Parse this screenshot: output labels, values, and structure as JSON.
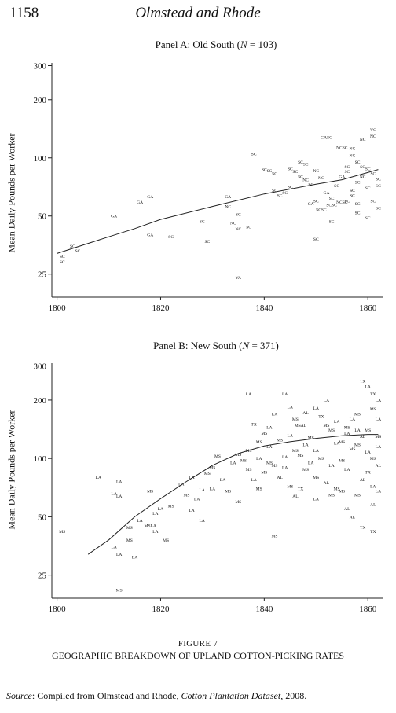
{
  "header": {
    "page_number": "1158",
    "running_head": "Olmstead and Rhode"
  },
  "figure": {
    "label": "Figure 7",
    "caption": "GEOGRAPHIC BREAKDOWN OF UPLAND COTTON-PICKING RATES",
    "source_lead": "Source",
    "source_prefix": ": Compiled from Olmstead and Rhode, ",
    "source_title": "Cotton Plantation Dataset",
    "source_suffix": ", 2008."
  },
  "chart_data": [
    {
      "type": "scatter",
      "title_prefix": "Panel A: Old South (",
      "title_n": "N",
      "title_suffix": " = 103)",
      "ylabel": "Mean Daily Pounds per Worker",
      "xlabel": "",
      "xlim": [
        1799,
        1863
      ],
      "ylim": [
        19,
        310
      ],
      "y_scale": "log",
      "x_ticks": [
        1800,
        1820,
        1840,
        1860
      ],
      "y_ticks": [
        25,
        50,
        100,
        200,
        300
      ],
      "grid": false,
      "legend": "none",
      "points": [
        {
          "x": 1801,
          "y": 31,
          "l": "SC"
        },
        {
          "x": 1803,
          "y": 35,
          "l": "SC"
        },
        {
          "x": 1804,
          "y": 33,
          "l": "SC"
        },
        {
          "x": 1801,
          "y": 29,
          "l": "SC"
        },
        {
          "x": 1811,
          "y": 50,
          "l": "GA"
        },
        {
          "x": 1818,
          "y": 63,
          "l": "GA"
        },
        {
          "x": 1816,
          "y": 59,
          "l": "GA"
        },
        {
          "x": 1818,
          "y": 40,
          "l": "GA"
        },
        {
          "x": 1822,
          "y": 39,
          "l": "SC"
        },
        {
          "x": 1828,
          "y": 47,
          "l": "SC"
        },
        {
          "x": 1829,
          "y": 37,
          "l": "SC"
        },
        {
          "x": 1833,
          "y": 63,
          "l": "GA"
        },
        {
          "x": 1833,
          "y": 56,
          "l": "NC"
        },
        {
          "x": 1834,
          "y": 46,
          "l": "NC"
        },
        {
          "x": 1835,
          "y": 51,
          "l": "SC"
        },
        {
          "x": 1835,
          "y": 43,
          "l": "NC"
        },
        {
          "x": 1835,
          "y": 24,
          "l": "VA"
        },
        {
          "x": 1837,
          "y": 44,
          "l": "SC"
        },
        {
          "x": 1838,
          "y": 105,
          "l": "SC"
        },
        {
          "x": 1840,
          "y": 87,
          "l": "SC"
        },
        {
          "x": 1841,
          "y": 86,
          "l": "SC"
        },
        {
          "x": 1842,
          "y": 83,
          "l": "SC"
        },
        {
          "x": 1842,
          "y": 68,
          "l": "SC"
        },
        {
          "x": 1843,
          "y": 64,
          "l": "SC"
        },
        {
          "x": 1845,
          "y": 88,
          "l": "SC"
        },
        {
          "x": 1846,
          "y": 85,
          "l": "SC"
        },
        {
          "x": 1847,
          "y": 80,
          "l": "SC"
        },
        {
          "x": 1848,
          "y": 77,
          "l": "NC"
        },
        {
          "x": 1849,
          "y": 73,
          "l": "SC"
        },
        {
          "x": 1850,
          "y": 86,
          "l": "NC"
        },
        {
          "x": 1851,
          "y": 79,
          "l": "NC"
        },
        {
          "x": 1852,
          "y": 66,
          "l": "GA"
        },
        {
          "x": 1852,
          "y": 128,
          "l": "GASC"
        },
        {
          "x": 1855,
          "y": 113,
          "l": "NCSC"
        },
        {
          "x": 1857,
          "y": 112,
          "l": "NC"
        },
        {
          "x": 1859,
          "y": 125,
          "l": "NC"
        },
        {
          "x": 1861,
          "y": 130,
          "l": "NC"
        },
        {
          "x": 1861,
          "y": 140,
          "l": "VC"
        },
        {
          "x": 1857,
          "y": 103,
          "l": "NC"
        },
        {
          "x": 1856,
          "y": 85,
          "l": "SC"
        },
        {
          "x": 1855,
          "y": 80,
          "l": "GA"
        },
        {
          "x": 1854,
          "y": 72,
          "l": "SC"
        },
        {
          "x": 1850,
          "y": 60,
          "l": "SC"
        },
        {
          "x": 1849,
          "y": 58,
          "l": "GA"
        },
        {
          "x": 1851,
          "y": 54,
          "l": "SCSC"
        },
        {
          "x": 1853,
          "y": 57,
          "l": "SCSC"
        },
        {
          "x": 1855,
          "y": 59,
          "l": "NCSC"
        },
        {
          "x": 1856,
          "y": 60,
          "l": "SC"
        },
        {
          "x": 1857,
          "y": 64,
          "l": "SC"
        },
        {
          "x": 1858,
          "y": 75,
          "l": "SC"
        },
        {
          "x": 1859,
          "y": 80,
          "l": "NC"
        },
        {
          "x": 1860,
          "y": 70,
          "l": "SC"
        },
        {
          "x": 1861,
          "y": 60,
          "l": "SC"
        },
        {
          "x": 1862,
          "y": 72,
          "l": "SC"
        },
        {
          "x": 1862,
          "y": 55,
          "l": "SC"
        },
        {
          "x": 1860,
          "y": 49,
          "l": "SC"
        },
        {
          "x": 1858,
          "y": 58,
          "l": "SC"
        },
        {
          "x": 1853,
          "y": 47,
          "l": "SC"
        },
        {
          "x": 1850,
          "y": 38,
          "l": "SC"
        },
        {
          "x": 1848,
          "y": 93,
          "l": "SC"
        },
        {
          "x": 1847,
          "y": 95,
          "l": "SC"
        },
        {
          "x": 1845,
          "y": 71,
          "l": "SC"
        },
        {
          "x": 1844,
          "y": 66,
          "l": "SC"
        },
        {
          "x": 1858,
          "y": 95,
          "l": "SC"
        },
        {
          "x": 1856,
          "y": 90,
          "l": "SC"
        },
        {
          "x": 1859,
          "y": 90,
          "l": "SC"
        },
        {
          "x": 1860,
          "y": 88,
          "l": "SC"
        },
        {
          "x": 1861,
          "y": 83,
          "l": "SC"
        },
        {
          "x": 1862,
          "y": 78,
          "l": "SC"
        },
        {
          "x": 1858,
          "y": 52,
          "l": "SC"
        },
        {
          "x": 1857,
          "y": 68,
          "l": "SC"
        },
        {
          "x": 1853,
          "y": 62,
          "l": "SC"
        }
      ],
      "fit": [
        [
          1800,
          32
        ],
        [
          1810,
          39
        ],
        [
          1815,
          43
        ],
        [
          1820,
          48
        ],
        [
          1830,
          56
        ],
        [
          1840,
          65
        ],
        [
          1850,
          73
        ],
        [
          1855,
          77
        ],
        [
          1862,
          87
        ]
      ]
    },
    {
      "type": "scatter",
      "title_prefix": "Panel B: New South (",
      "title_n": "N",
      "title_suffix": " = 371)",
      "ylabel": "Mean Daily Pounds per Worker",
      "xlabel": "",
      "xlim": [
        1799,
        1863
      ],
      "ylim": [
        19,
        310
      ],
      "y_scale": "log",
      "x_ticks": [
        1800,
        1820,
        1840,
        1860
      ],
      "y_ticks": [
        25,
        50,
        100,
        200,
        300
      ],
      "grid": false,
      "legend": "none",
      "points": [
        {
          "x": 1801,
          "y": 42,
          "l": "MS"
        },
        {
          "x": 1808,
          "y": 80,
          "l": "LA"
        },
        {
          "x": 1811,
          "y": 66,
          "l": "LA"
        },
        {
          "x": 1812,
          "y": 64,
          "l": "LA"
        },
        {
          "x": 1812,
          "y": 76,
          "l": "LA"
        },
        {
          "x": 1811,
          "y": 35,
          "l": "LA"
        },
        {
          "x": 1812,
          "y": 32,
          "l": "LA"
        },
        {
          "x": 1812,
          "y": 21,
          "l": "MS"
        },
        {
          "x": 1814,
          "y": 44,
          "l": "MS"
        },
        {
          "x": 1814,
          "y": 38,
          "l": "MS"
        },
        {
          "x": 1815,
          "y": 31,
          "l": "LA"
        },
        {
          "x": 1816,
          "y": 48,
          "l": "LA"
        },
        {
          "x": 1818,
          "y": 68,
          "l": "MS"
        },
        {
          "x": 1818,
          "y": 45,
          "l": "MSLA"
        },
        {
          "x": 1819,
          "y": 52,
          "l": "LA"
        },
        {
          "x": 1819,
          "y": 42,
          "l": "LA"
        },
        {
          "x": 1820,
          "y": 55,
          "l": "LA"
        },
        {
          "x": 1821,
          "y": 38,
          "l": "MS"
        },
        {
          "x": 1822,
          "y": 57,
          "l": "MS"
        },
        {
          "x": 1824,
          "y": 74,
          "l": "LA"
        },
        {
          "x": 1826,
          "y": 80,
          "l": "LA"
        },
        {
          "x": 1826,
          "y": 54,
          "l": "LA"
        },
        {
          "x": 1828,
          "y": 48,
          "l": "LA"
        },
        {
          "x": 1828,
          "y": 69,
          "l": "LA"
        },
        {
          "x": 1829,
          "y": 84,
          "l": "MS"
        },
        {
          "x": 1831,
          "y": 103,
          "l": "MS"
        },
        {
          "x": 1830,
          "y": 90,
          "l": "MS"
        },
        {
          "x": 1832,
          "y": 78,
          "l": "LA"
        },
        {
          "x": 1833,
          "y": 68,
          "l": "MS"
        },
        {
          "x": 1834,
          "y": 95,
          "l": "LA"
        },
        {
          "x": 1835,
          "y": 105,
          "l": "MS"
        },
        {
          "x": 1836,
          "y": 98,
          "l": "MS"
        },
        {
          "x": 1837,
          "y": 110,
          "l": "MS"
        },
        {
          "x": 1837,
          "y": 215,
          "l": "LA"
        },
        {
          "x": 1838,
          "y": 150,
          "l": "TX"
        },
        {
          "x": 1839,
          "y": 122,
          "l": "MS"
        },
        {
          "x": 1840,
          "y": 135,
          "l": "MS"
        },
        {
          "x": 1841,
          "y": 145,
          "l": "LA"
        },
        {
          "x": 1842,
          "y": 170,
          "l": "LA"
        },
        {
          "x": 1844,
          "y": 215,
          "l": "LA"
        },
        {
          "x": 1845,
          "y": 185,
          "l": "LA"
        },
        {
          "x": 1846,
          "y": 160,
          "l": "MS"
        },
        {
          "x": 1847,
          "y": 148,
          "l": "MSAL"
        },
        {
          "x": 1848,
          "y": 172,
          "l": "AL"
        },
        {
          "x": 1850,
          "y": 182,
          "l": "LA"
        },
        {
          "x": 1851,
          "y": 165,
          "l": "TX"
        },
        {
          "x": 1852,
          "y": 200,
          "l": "LA"
        },
        {
          "x": 1853,
          "y": 140,
          "l": "MS"
        },
        {
          "x": 1854,
          "y": 120,
          "l": "LA"
        },
        {
          "x": 1855,
          "y": 98,
          "l": "MS"
        },
        {
          "x": 1856,
          "y": 88,
          "l": "LA"
        },
        {
          "x": 1857,
          "y": 160,
          "l": "LA"
        },
        {
          "x": 1858,
          "y": 170,
          "l": "MS"
        },
        {
          "x": 1859,
          "y": 250,
          "l": "TX"
        },
        {
          "x": 1860,
          "y": 235,
          "l": "LA"
        },
        {
          "x": 1861,
          "y": 215,
          "l": "TX"
        },
        {
          "x": 1862,
          "y": 200,
          "l": "LA"
        },
        {
          "x": 1861,
          "y": 180,
          "l": "MS"
        },
        {
          "x": 1862,
          "y": 160,
          "l": "LA"
        },
        {
          "x": 1860,
          "y": 140,
          "l": "MS"
        },
        {
          "x": 1859,
          "y": 130,
          "l": "AL"
        },
        {
          "x": 1858,
          "y": 118,
          "l": "MS"
        },
        {
          "x": 1860,
          "y": 108,
          "l": "LA"
        },
        {
          "x": 1861,
          "y": 100,
          "l": "MS"
        },
        {
          "x": 1862,
          "y": 92,
          "l": "AL"
        },
        {
          "x": 1860,
          "y": 85,
          "l": "TX"
        },
        {
          "x": 1859,
          "y": 78,
          "l": "AL"
        },
        {
          "x": 1861,
          "y": 72,
          "l": "LA"
        },
        {
          "x": 1858,
          "y": 65,
          "l": "MS"
        },
        {
          "x": 1856,
          "y": 55,
          "l": "AL"
        },
        {
          "x": 1857,
          "y": 50,
          "l": "AL"
        },
        {
          "x": 1859,
          "y": 44,
          "l": "TX"
        },
        {
          "x": 1861,
          "y": 58,
          "l": "AL"
        },
        {
          "x": 1861,
          "y": 42,
          "l": "TX"
        },
        {
          "x": 1854,
          "y": 70,
          "l": "MS"
        },
        {
          "x": 1852,
          "y": 75,
          "l": "AL"
        },
        {
          "x": 1850,
          "y": 80,
          "l": "MS"
        },
        {
          "x": 1848,
          "y": 88,
          "l": "MS"
        },
        {
          "x": 1847,
          "y": 70,
          "l": "TX"
        },
        {
          "x": 1846,
          "y": 64,
          "l": "AL"
        },
        {
          "x": 1845,
          "y": 72,
          "l": "MS"
        },
        {
          "x": 1843,
          "y": 80,
          "l": "AL"
        },
        {
          "x": 1842,
          "y": 92,
          "l": "MS"
        },
        {
          "x": 1840,
          "y": 85,
          "l": "MS"
        },
        {
          "x": 1839,
          "y": 70,
          "l": "MS"
        },
        {
          "x": 1838,
          "y": 78,
          "l": "LA"
        },
        {
          "x": 1837,
          "y": 88,
          "l": "MS"
        },
        {
          "x": 1835,
          "y": 60,
          "l": "MS"
        },
        {
          "x": 1842,
          "y": 40,
          "l": "MS"
        },
        {
          "x": 1844,
          "y": 102,
          "l": "LA"
        },
        {
          "x": 1846,
          "y": 110,
          "l": "MS"
        },
        {
          "x": 1848,
          "y": 118,
          "l": "LA"
        },
        {
          "x": 1849,
          "y": 128,
          "l": "MS"
        },
        {
          "x": 1850,
          "y": 110,
          "l": "LA"
        },
        {
          "x": 1851,
          "y": 100,
          "l": "MS"
        },
        {
          "x": 1853,
          "y": 92,
          "l": "LA"
        },
        {
          "x": 1855,
          "y": 122,
          "l": "MS"
        },
        {
          "x": 1856,
          "y": 135,
          "l": "LA"
        },
        {
          "x": 1857,
          "y": 112,
          "l": "MS"
        },
        {
          "x": 1841,
          "y": 115,
          "l": "LA"
        },
        {
          "x": 1843,
          "y": 125,
          "l": "MS"
        },
        {
          "x": 1845,
          "y": 132,
          "l": "LA"
        },
        {
          "x": 1847,
          "y": 104,
          "l": "MS"
        },
        {
          "x": 1849,
          "y": 95,
          "l": "LA"
        },
        {
          "x": 1852,
          "y": 148,
          "l": "MS"
        },
        {
          "x": 1854,
          "y": 155,
          "l": "LA"
        },
        {
          "x": 1856,
          "y": 145,
          "l": "MS"
        },
        {
          "x": 1858,
          "y": 140,
          "l": "LA"
        },
        {
          "x": 1862,
          "y": 130,
          "l": "MS"
        },
        {
          "x": 1862,
          "y": 115,
          "l": "LA"
        },
        {
          "x": 1862,
          "y": 68,
          "l": "LA"
        },
        {
          "x": 1850,
          "y": 62,
          "l": "LA"
        },
        {
          "x": 1853,
          "y": 65,
          "l": "MS"
        },
        {
          "x": 1855,
          "y": 68,
          "l": "MS"
        },
        {
          "x": 1839,
          "y": 100,
          "l": "LA"
        },
        {
          "x": 1841,
          "y": 95,
          "l": "MS"
        },
        {
          "x": 1844,
          "y": 90,
          "l": "LA"
        },
        {
          "x": 1830,
          "y": 70,
          "l": "LA"
        },
        {
          "x": 1827,
          "y": 62,
          "l": "LA"
        },
        {
          "x": 1825,
          "y": 65,
          "l": "MS"
        }
      ],
      "fit": [
        [
          1806,
          32
        ],
        [
          1810,
          38
        ],
        [
          1815,
          50
        ],
        [
          1820,
          62
        ],
        [
          1825,
          76
        ],
        [
          1830,
          92
        ],
        [
          1835,
          106
        ],
        [
          1840,
          116
        ],
        [
          1845,
          122
        ],
        [
          1850,
          127
        ],
        [
          1855,
          131
        ],
        [
          1860,
          133
        ],
        [
          1862,
          133
        ]
      ]
    }
  ]
}
